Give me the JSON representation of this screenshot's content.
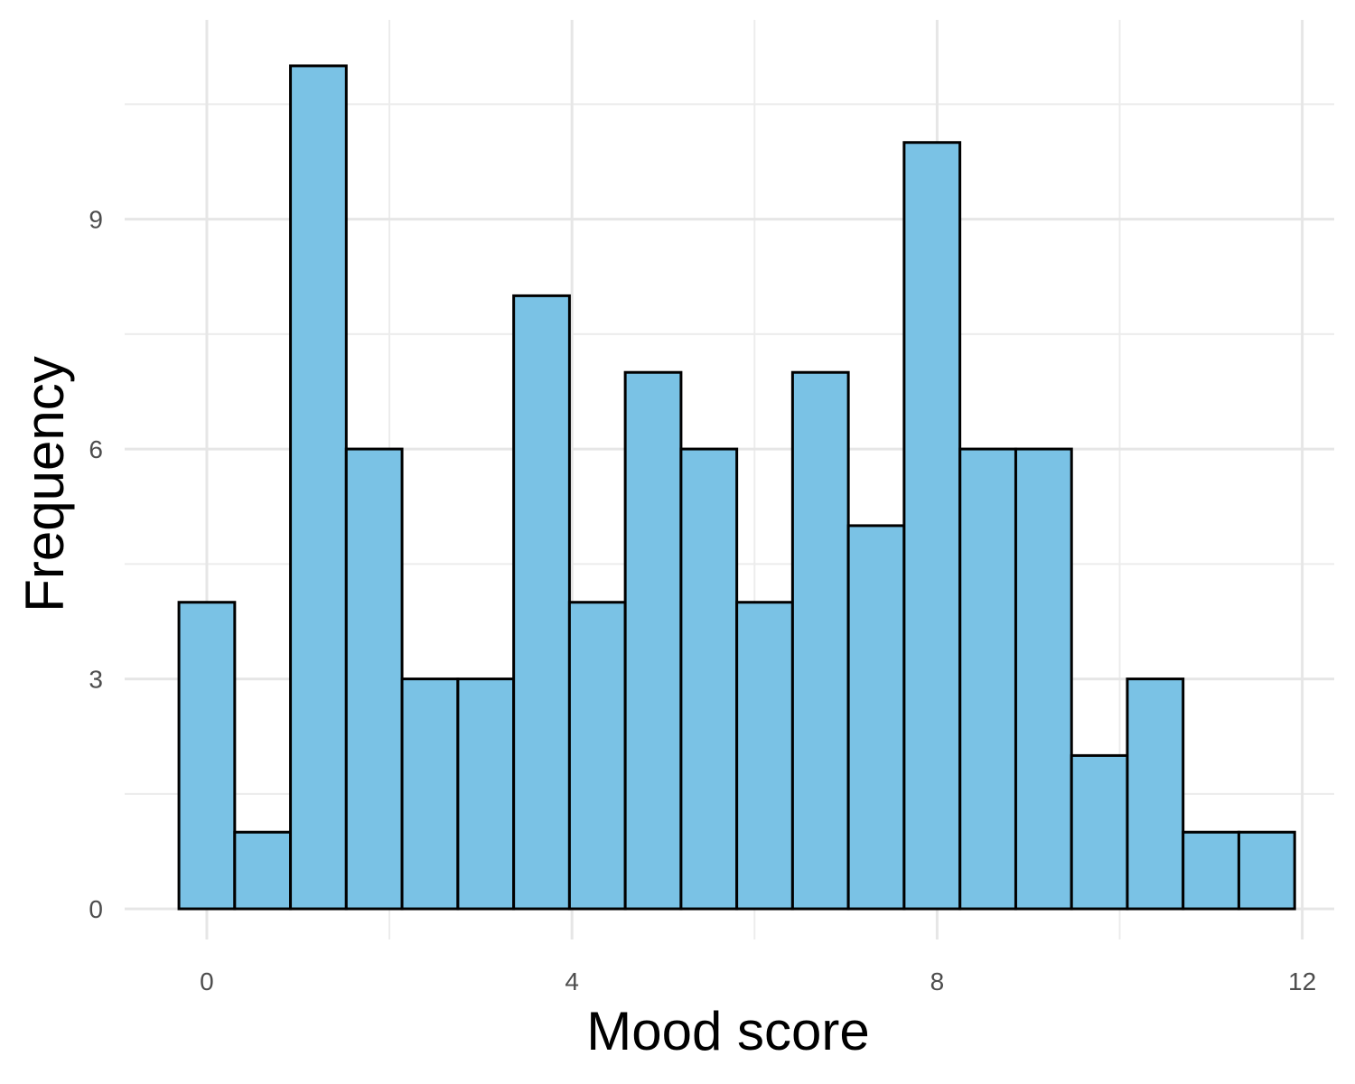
{
  "chart_data": {
    "type": "bar",
    "subtype": "histogram",
    "xlabel": "Mood score",
    "ylabel": "Frequency",
    "bin_width": 0.6111,
    "bin_centers": [
      0.0,
      0.611,
      1.222,
      1.833,
      2.444,
      3.056,
      3.667,
      4.278,
      4.889,
      5.5,
      6.111,
      6.722,
      7.333,
      7.944,
      8.556,
      9.167,
      9.778,
      10.389,
      11.0,
      11.611
    ],
    "values": [
      4,
      1,
      11,
      6,
      3,
      3,
      8,
      4,
      7,
      6,
      4,
      7,
      5,
      10,
      6,
      6,
      2,
      3,
      1,
      1
    ],
    "xlim": [
      -0.9,
      12.35
    ],
    "ylim": [
      -0.4,
      11.6
    ],
    "x_ticks": [
      0,
      4,
      8,
      12
    ],
    "x_minor_ticks": [
      2,
      6,
      10
    ],
    "y_ticks": [
      0,
      3,
      6,
      9
    ],
    "y_minor_ticks": [
      1.5,
      4.5,
      7.5,
      10.5
    ],
    "x_tick_labels": [
      "0",
      "4",
      "8",
      "12"
    ],
    "y_tick_labels": [
      "0",
      "3",
      "6",
      "9"
    ],
    "bar_fill": "#7ac2e5",
    "bar_edge": "#000000",
    "grid": true,
    "legend": "none"
  }
}
